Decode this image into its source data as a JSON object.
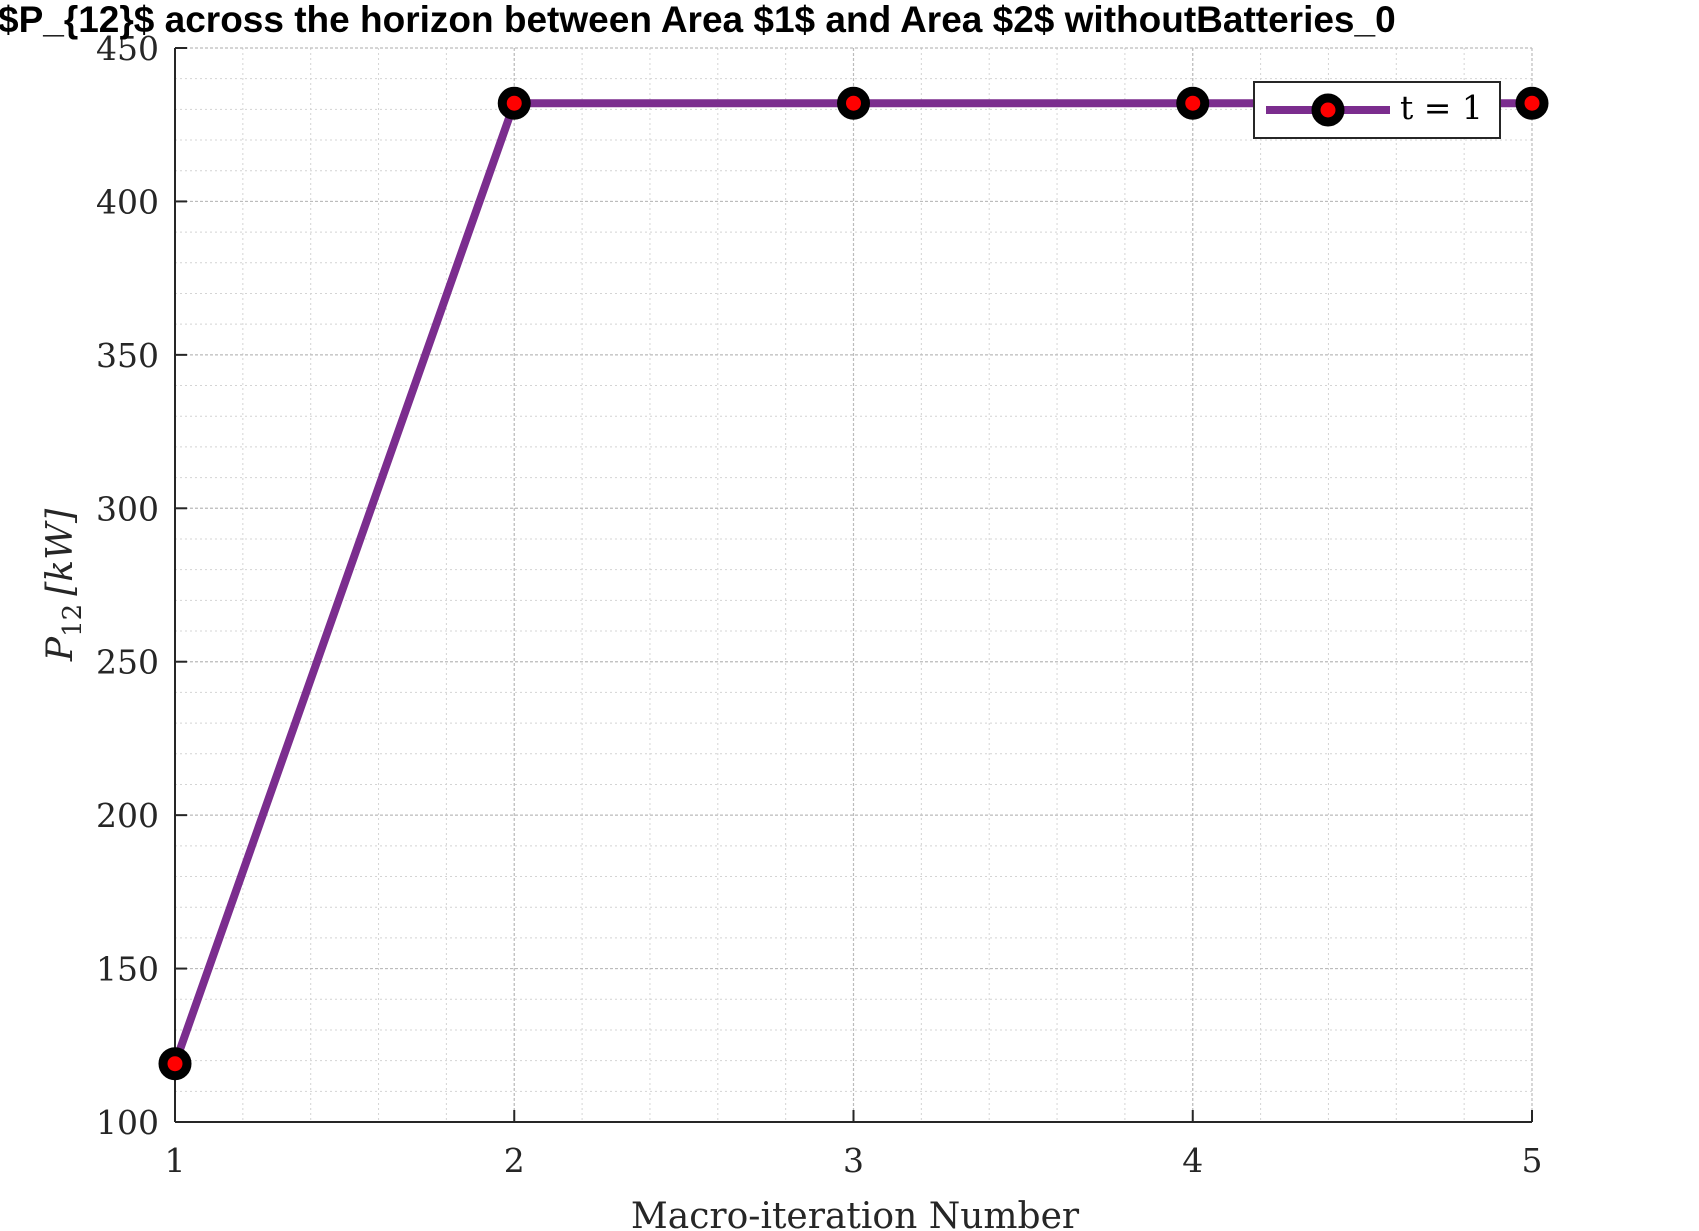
{
  "chart_data": {
    "type": "line",
    "title": "$P_{12}$ across the horizon between Area $1$ and Area $2$ withoutBatteries_0",
    "xlabel": "Macro-iteration Number",
    "ylabel_main": "P",
    "ylabel_sub": "12",
    "ylabel_unit": "[kW]",
    "xlim": [
      1,
      5
    ],
    "ylim": [
      100,
      450
    ],
    "x_ticks": [
      "1",
      "2",
      "3",
      "4",
      "5"
    ],
    "y_ticks": [
      "100",
      "150",
      "200",
      "250",
      "300",
      "350",
      "400",
      "450"
    ],
    "grid": true,
    "minor_grid": true,
    "legend_position": "top-right",
    "series": [
      {
        "name": "t = 1",
        "x": [
          1,
          2,
          3,
          4,
          5
        ],
        "y": [
          119,
          432,
          432,
          432,
          432
        ],
        "line_color": "#7b2d8e",
        "marker_edge_color": "#000000",
        "marker_face_color": "#ff0000"
      }
    ]
  }
}
